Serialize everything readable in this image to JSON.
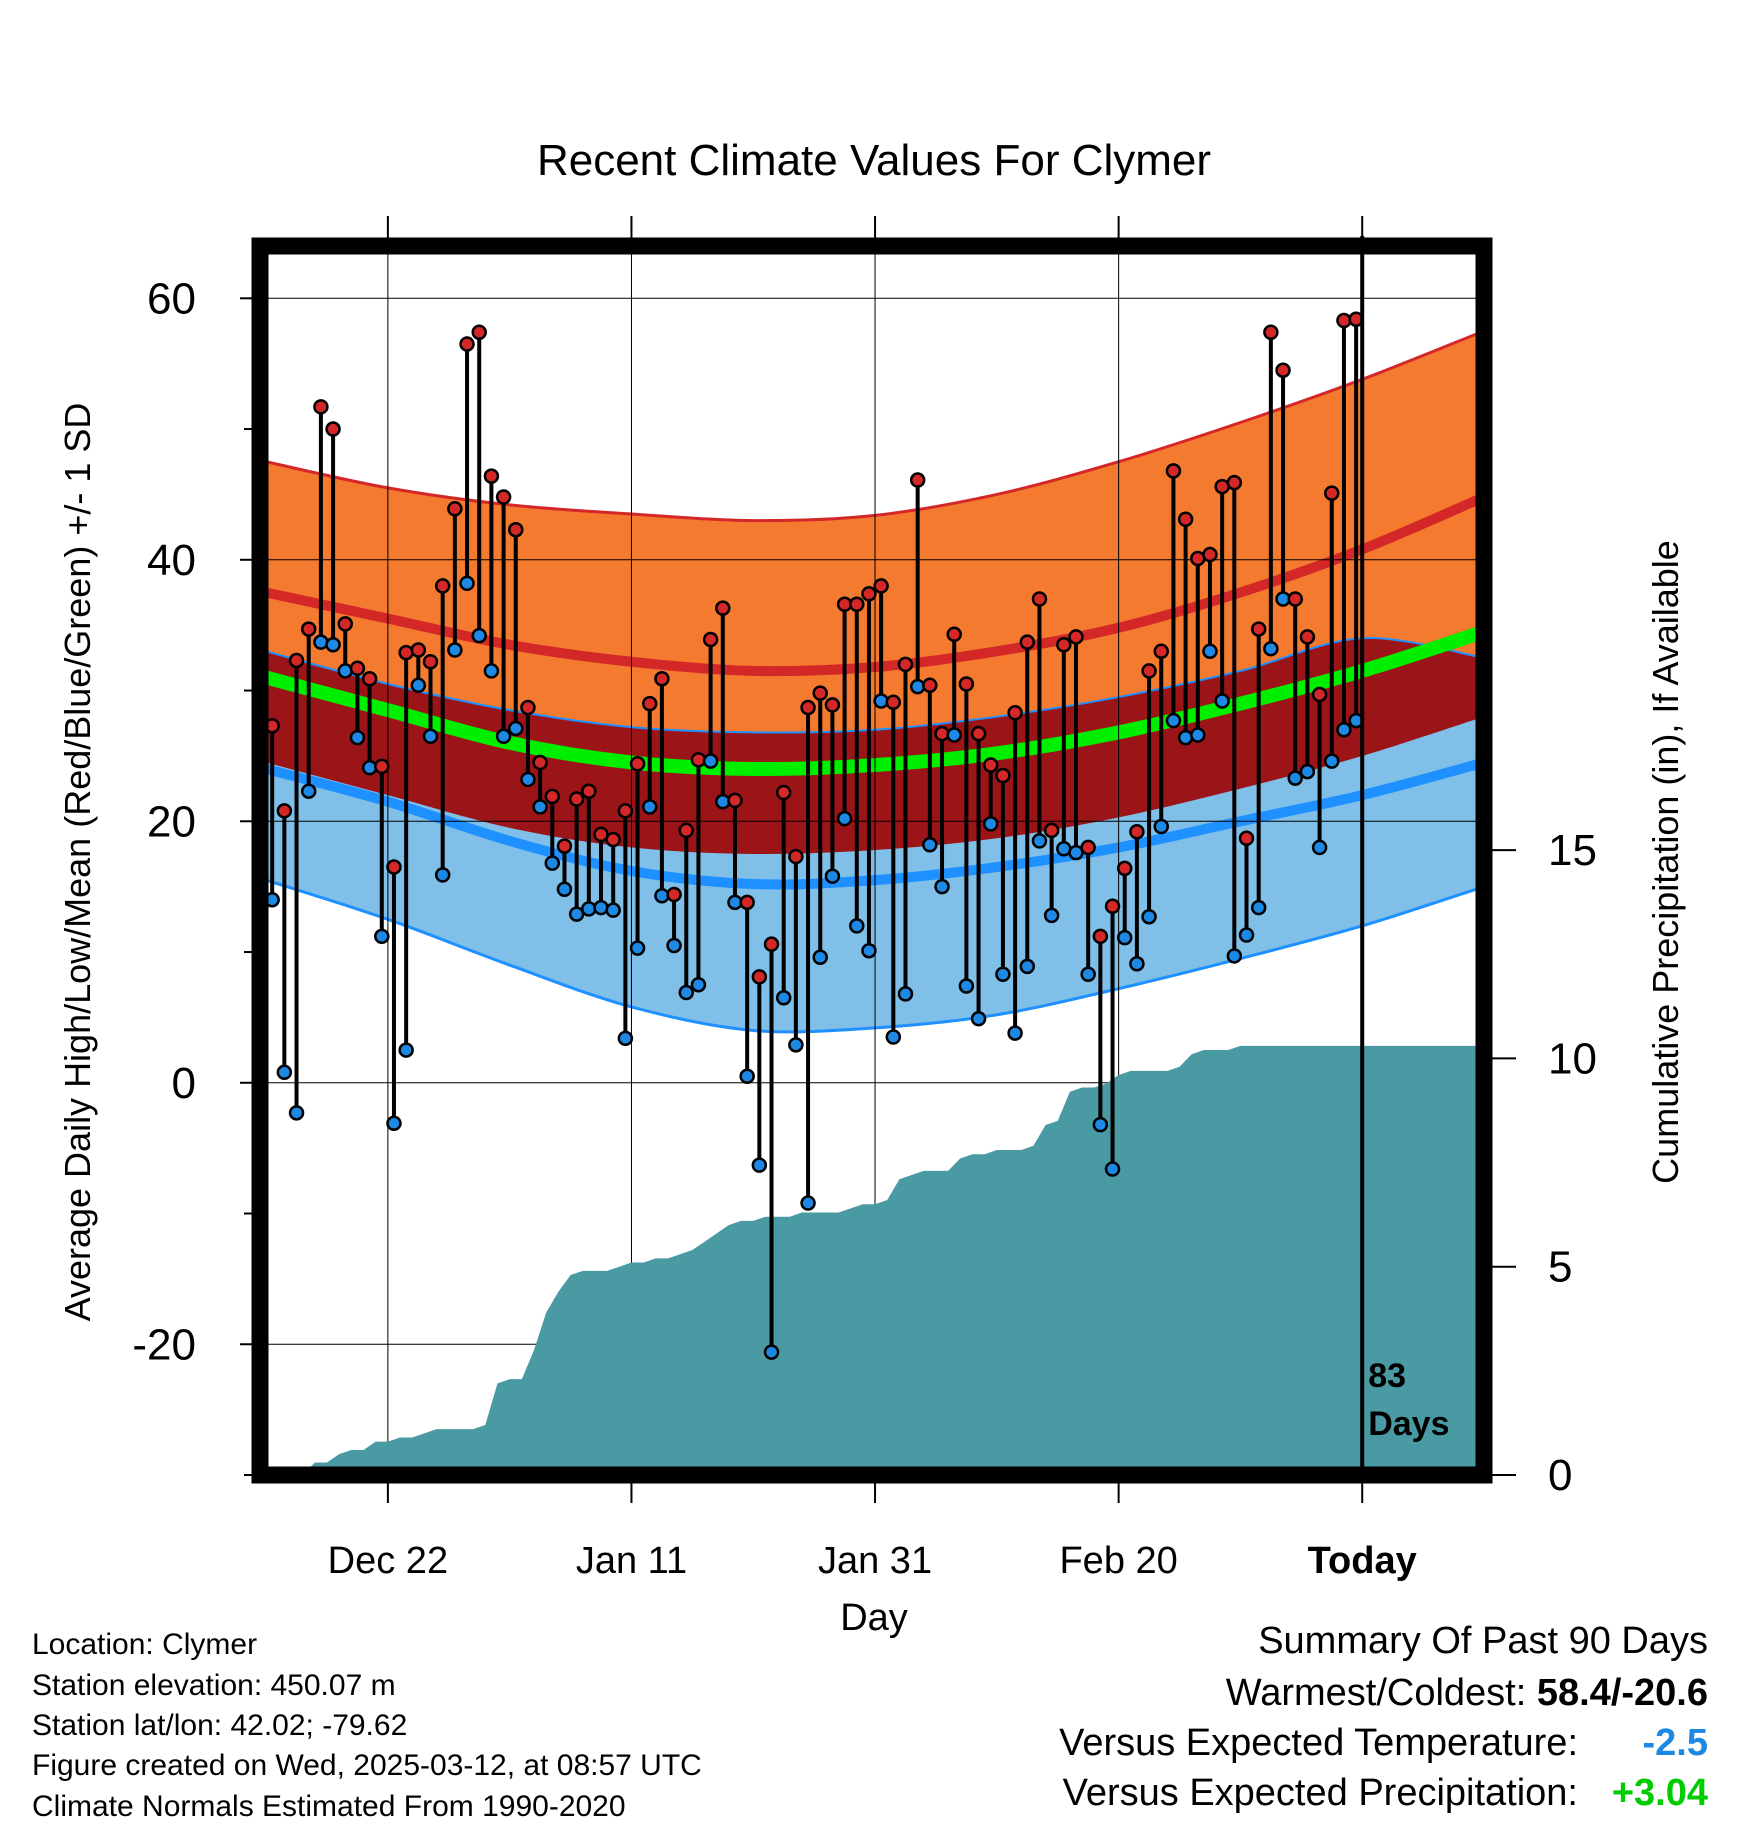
{
  "chart_data": {
    "type": "line",
    "title": "Recent Climate Values For Clymer",
    "xlabel": "Day",
    "ylabel": "Average Daily High/Low/Mean (Red/Blue/Green) +/- 1 SD",
    "y2label": "Cumulative Precipitation (in), If Available",
    "ylim": [
      -30,
      64
    ],
    "y2lim": [
      0,
      29.5
    ],
    "yticks": [
      "60",
      "40",
      "20",
      "0",
      "-20"
    ],
    "y2ticks": [
      "15",
      "10",
      "5",
      "0"
    ],
    "xticks": [
      {
        "label": "Dec 22",
        "day": 10
      },
      {
        "label": "Jan 11",
        "day": 30
      },
      {
        "label": "Jan 31",
        "day": 50
      },
      {
        "label": "Feb 20",
        "day": 70
      },
      {
        "label": "Today",
        "day": 90
      }
    ],
    "today_day": 90,
    "xlim": [
      -0.5,
      100
    ],
    "annotation": {
      "line1": "83",
      "line2": "Days"
    },
    "normals": {
      "days": [
        0,
        10,
        20,
        30,
        40,
        50,
        60,
        70,
        80,
        90,
        100
      ],
      "high_mean": [
        37.5,
        35.5,
        33.5,
        32.2,
        31.5,
        31.8,
        33.0,
        34.8,
        37.5,
        40.8,
        44.8
      ],
      "high_plus_sd": [
        47.5,
        45.5,
        44.2,
        43.5,
        43.0,
        43.4,
        45.0,
        47.5,
        50.5,
        53.8,
        57.5
      ],
      "high_minus_sd": [
        33.0,
        30.5,
        28.5,
        27.2,
        26.8,
        27.0,
        28.0,
        29.5,
        31.5,
        34.0,
        32.5
      ],
      "mean": [
        31.0,
        28.5,
        26.0,
        24.5,
        24.0,
        24.3,
        25.2,
        26.8,
        29.0,
        31.5,
        34.5
      ],
      "low_mean": [
        24.0,
        21.5,
        18.5,
        16.2,
        15.2,
        15.5,
        16.5,
        18.0,
        20.0,
        22.0,
        24.5
      ],
      "low_plus_sd": [
        33.0,
        30.5,
        28.5,
        27.2,
        26.8,
        27.0,
        28.0,
        29.5,
        31.5,
        34.0,
        32.5
      ],
      "low_minus_sd": [
        15.5,
        12.5,
        9.0,
        5.8,
        4.0,
        4.2,
        5.2,
        7.2,
        9.5,
        12.0,
        15.0
      ]
    },
    "series": [
      {
        "name": "High",
        "color": "#d42828",
        "values": [
          27.3,
          20.8,
          32.3,
          34.7,
          51.7,
          50.0,
          35.1,
          31.7,
          30.9,
          24.2,
          16.5,
          32.9,
          33.1,
          32.2,
          38.0,
          43.9,
          56.5,
          57.4,
          46.4,
          44.8,
          42.3,
          28.7,
          24.5,
          21.9,
          18.1,
          21.7,
          22.3,
          19.0,
          18.6,
          20.8,
          24.4,
          29.0,
          30.9,
          14.4,
          19.3,
          24.7,
          33.9,
          36.3,
          21.6,
          13.8,
          8.1,
          10.6,
          22.2,
          17.3,
          28.7,
          29.8,
          28.9,
          36.6,
          36.6,
          37.4,
          38.0,
          29.1,
          32.0,
          46.1,
          30.4,
          26.7,
          34.3,
          30.5,
          26.7,
          24.3,
          23.5,
          28.3,
          33.7,
          37.0,
          19.3,
          33.5,
          34.1,
          18.0,
          11.2,
          13.5,
          16.4,
          19.2,
          31.5,
          33.0,
          46.8,
          43.1,
          40.1,
          40.4,
          45.6,
          45.9,
          18.7,
          34.7,
          57.4,
          54.5,
          37.0,
          34.1,
          29.7,
          45.1,
          58.3,
          58.4
        ]
      },
      {
        "name": "Low",
        "color": "#1e88e5",
        "values": [
          14.0,
          0.8,
          -2.3,
          22.3,
          33.7,
          33.5,
          31.5,
          26.4,
          24.1,
          11.2,
          -3.1,
          2.5,
          30.4,
          26.5,
          15.9,
          33.1,
          38.2,
          34.2,
          31.5,
          26.5,
          27.1,
          23.2,
          21.1,
          16.8,
          14.8,
          12.9,
          13.3,
          13.4,
          13.2,
          3.4,
          10.3,
          21.1,
          14.3,
          10.5,
          6.9,
          7.5,
          24.6,
          21.5,
          13.8,
          0.5,
          -6.3,
          -20.6,
          6.5,
          2.9,
          -9.2,
          9.6,
          15.8,
          20.2,
          12.0,
          10.1,
          29.2,
          3.5,
          6.8,
          30.3,
          18.2,
          15.0,
          26.6,
          7.4,
          4.9,
          19.8,
          8.3,
          3.8,
          8.9,
          18.5,
          12.8,
          17.9,
          17.6,
          8.3,
          -3.2,
          -6.6,
          11.1,
          9.1,
          12.7,
          19.6,
          27.7,
          26.4,
          26.6,
          33.0,
          29.2,
          9.7,
          11.3,
          13.4,
          33.2,
          37.0,
          23.3,
          23.8,
          18.0,
          24.6,
          27.0,
          27.7
        ]
      }
    ],
    "precip": {
      "days": [
        3,
        4,
        5,
        6,
        7,
        8,
        9,
        10,
        11,
        12,
        13,
        14,
        15,
        16,
        17,
        18,
        19,
        20,
        21,
        22,
        23,
        24,
        25,
        26,
        27,
        28,
        29,
        30,
        31,
        32,
        33,
        34,
        35,
        36,
        37,
        38,
        39,
        40,
        41,
        42,
        43,
        44,
        45,
        46,
        47,
        48,
        49,
        50,
        51,
        52,
        53,
        54,
        55,
        56,
        57,
        58,
        59,
        60,
        61,
        62,
        63,
        64,
        65,
        66,
        67,
        68,
        69,
        70,
        71,
        72,
        73,
        74,
        75,
        76,
        77,
        78,
        79,
        80,
        100
      ],
      "values": [
        0.0,
        0.3,
        0.3,
        0.5,
        0.6,
        0.6,
        0.8,
        0.8,
        0.9,
        0.9,
        1.0,
        1.1,
        1.1,
        1.1,
        1.1,
        1.2,
        2.2,
        2.3,
        2.3,
        3.0,
        3.9,
        4.4,
        4.8,
        4.9,
        4.9,
        4.9,
        5.0,
        5.1,
        5.1,
        5.2,
        5.2,
        5.3,
        5.4,
        5.6,
        5.8,
        6.0,
        6.1,
        6.1,
        6.2,
        6.2,
        6.2,
        6.3,
        6.3,
        6.3,
        6.3,
        6.4,
        6.5,
        6.5,
        6.6,
        7.1,
        7.2,
        7.3,
        7.3,
        7.3,
        7.6,
        7.7,
        7.7,
        7.8,
        7.8,
        7.8,
        7.9,
        8.4,
        8.5,
        9.2,
        9.3,
        9.3,
        9.4,
        9.6,
        9.7,
        9.7,
        9.7,
        9.7,
        9.8,
        10.1,
        10.2,
        10.2,
        10.2,
        10.3,
        10.3
      ]
    }
  },
  "info": {
    "location": "Location: Clymer",
    "elevation": "Station elevation: 450.07 m",
    "latlon": "Station lat/lon: 42.02; -79.62",
    "created": "Figure created on Wed, 2025-03-12, at 08:57 UTC",
    "normals": "Climate Normals Estimated From 1990-2020"
  },
  "summary": {
    "title": "Summary Of Past 90 Days",
    "warm_label": "Warmest/Coldest: ",
    "warm_value": "58.4/-20.6",
    "temp_label": "Versus Expected Temperature:",
    "temp_value": "-2.5",
    "temp_color": "#1e88e5",
    "precip_label": "Versus Expected Precipitation:",
    "precip_value": "+3.04",
    "precip_color": "#00cc00"
  },
  "colors": {
    "high_band": "#f47a30",
    "high_line": "#d42828",
    "mean_band": "#9a1418",
    "mean_line": "#00ee00",
    "low_band": "#7fbfe8",
    "low_line": "#1e90ff",
    "precip": "#4a9aa3"
  }
}
